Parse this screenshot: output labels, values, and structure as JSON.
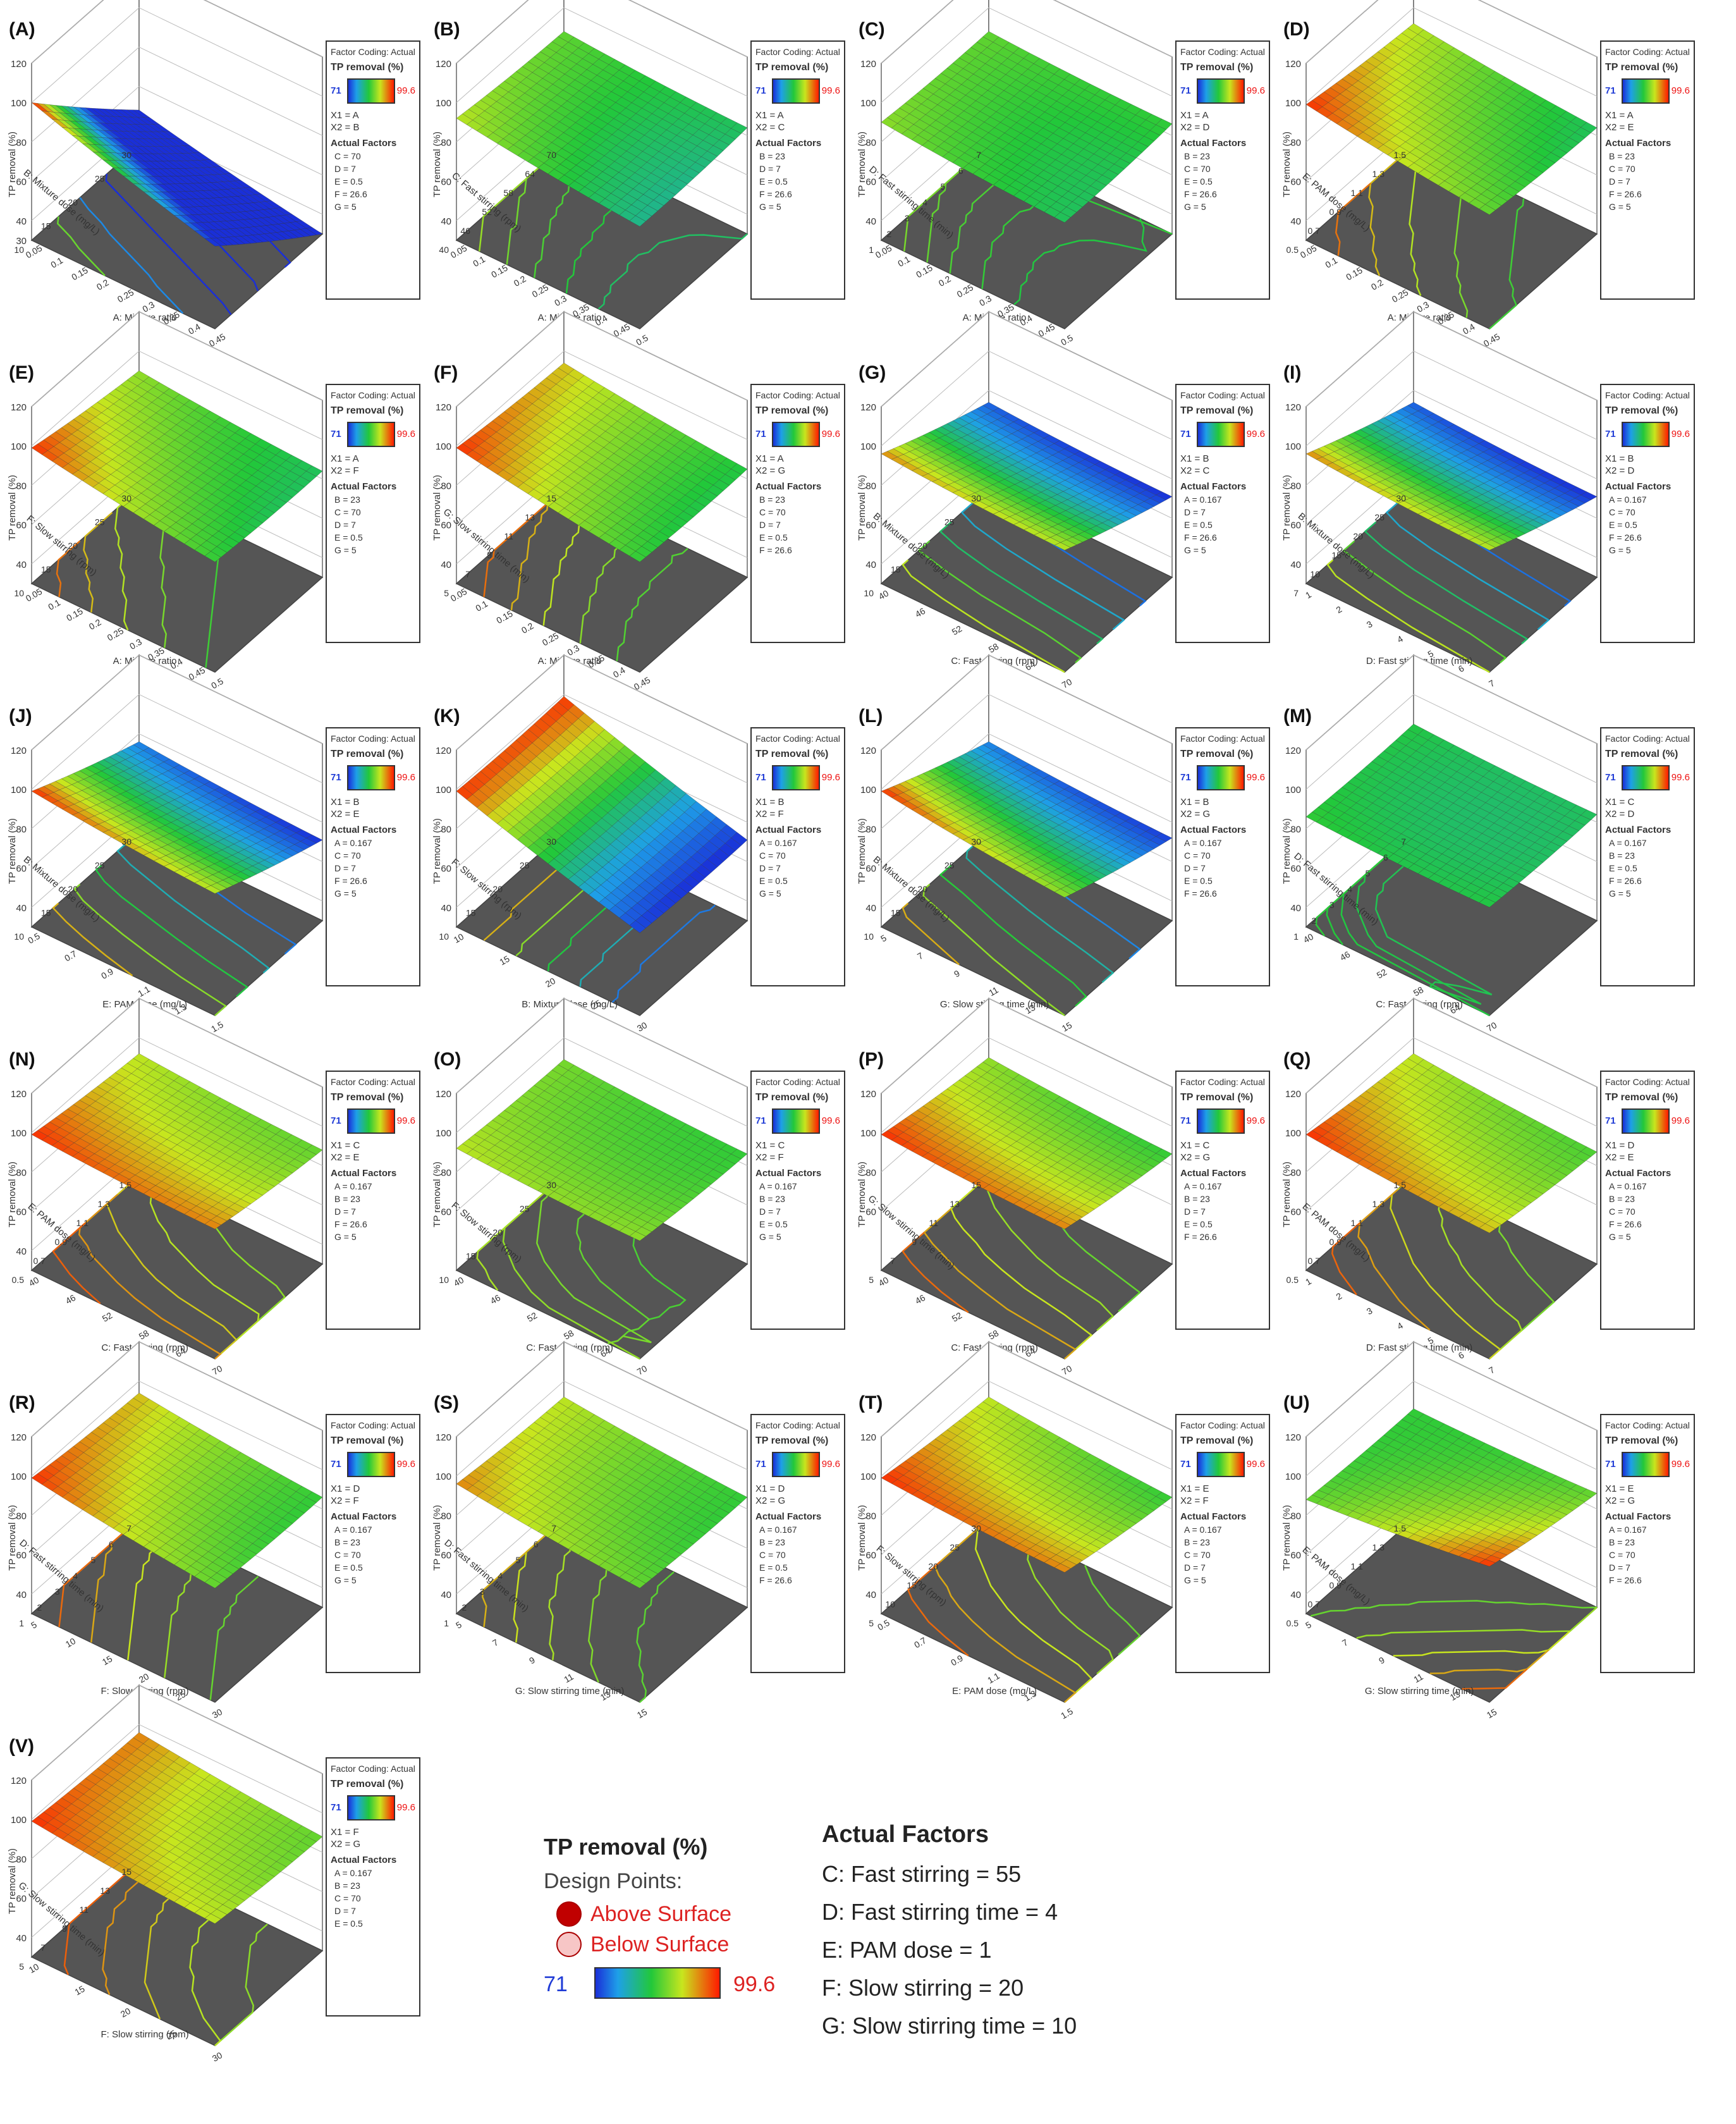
{
  "colorbar": {
    "min": "71",
    "max": "99.6",
    "colors": [
      "#1a2fd8",
      "#1ea0e8",
      "#22c83a",
      "#c8e61e",
      "#ff1a00"
    ]
  },
  "panel_legend": {
    "factor_coding": "Factor Coding: Actual",
    "response": "TP removal (%)",
    "actual_factors_title": "Actual Factors"
  },
  "chart_data": [
    {
      "type": "surface",
      "label": "(A)",
      "zlabel": "TP removal (%)",
      "zticks": [
        "30",
        "40",
        "60",
        "80",
        "100",
        "120"
      ],
      "xlabel": "A: Mixture ratio",
      "xticks": [
        "0.05",
        "0.1",
        "0.15",
        "0.2",
        "0.25",
        "0.3",
        "0.35",
        "0.4",
        "0.45"
      ],
      "ylabel": "B: Mixture dose (mg/L)",
      "yticks": [
        "10",
        "15",
        "20",
        "25",
        "30"
      ],
      "x1": "X1 = A",
      "x2": "X2 = B",
      "actual_factors": [
        "C = 70",
        "D = 7",
        "E = 0.5",
        "F = 26.6",
        "G = 5"
      ],
      "corners": [
        100,
        72,
        48,
        30
      ]
    },
    {
      "type": "surface",
      "label": "(B)",
      "zlabel": "TP removal (%)",
      "zticks": [
        "40",
        "60",
        "80",
        "100",
        "120"
      ],
      "xlabel": "A: Mixture ratio",
      "xticks": [
        "0.05",
        "0.1",
        "0.15",
        "0.2",
        "0.25",
        "0.3",
        "0.35",
        "0.4",
        "0.45",
        "0.5"
      ],
      "ylabel": "C: Fast stirring (rpm)",
      "yticks": [
        "40",
        "46",
        "52",
        "58",
        "64",
        "70"
      ],
      "x1": "X1 = A",
      "x2": "X2 = C",
      "actual_factors": [
        "B = 23",
        "D = 7",
        "E = 0.5",
        "F = 26.6",
        "G = 5"
      ],
      "corners": [
        92,
        82,
        88,
        84
      ]
    },
    {
      "type": "surface",
      "label": "(C)",
      "zlabel": "TP removal (%)",
      "zticks": [
        "40",
        "60",
        "80",
        "100",
        "120"
      ],
      "xlabel": "A: Mixture ratio",
      "xticks": [
        "0.05",
        "0.1",
        "0.15",
        "0.2",
        "0.25",
        "0.3",
        "0.35",
        "0.4",
        "0.45",
        "0.5"
      ],
      "ylabel": "D: Fast stirring time (min)",
      "yticks": [
        "1",
        "2",
        "3",
        "4",
        "5",
        "6",
        "7"
      ],
      "x1": "X1 = A",
      "x2": "X2 = D",
      "actual_factors": [
        "B = 23",
        "C = 70",
        "E = 0.5",
        "F = 26.6",
        "G = 5"
      ],
      "corners": [
        90,
        84,
        88,
        86
      ]
    },
    {
      "type": "surface",
      "label": "(D)",
      "zlabel": "TP removal (%)",
      "zticks": [
        "40",
        "60",
        "80",
        "100",
        "120"
      ],
      "xlabel": "A: Mixture ratio",
      "xticks": [
        "0.05",
        "0.1",
        "0.15",
        "0.2",
        "0.25",
        "0.3",
        "0.35",
        "0.4",
        "0.45"
      ],
      "ylabel": "E: PAM dose (mg/L)",
      "yticks": [
        "0.5",
        "0.7",
        "0.9",
        "1.1",
        "1.3",
        "1.5"
      ],
      "x1": "X1 = A",
      "x2": "X2 = E",
      "actual_factors": [
        "B = 23",
        "C = 70",
        "D = 7",
        "F = 26.6",
        "G = 5"
      ],
      "corners": [
        99,
        88,
        92,
        84
      ]
    },
    {
      "type": "surface",
      "label": "(E)",
      "zlabel": "TP removal (%)",
      "zticks": [
        "40",
        "60",
        "80",
        "100",
        "120"
      ],
      "xlabel": "A: Mixture ratio",
      "xticks": [
        "0.05",
        "0.1",
        "0.15",
        "0.2",
        "0.25",
        "0.3",
        "0.35",
        "0.4",
        "0.45",
        "0.5"
      ],
      "ylabel": "F: Slow stirring (rpm)",
      "yticks": [
        "10",
        "15",
        "20",
        "25",
        "30"
      ],
      "x1": "X1 = A",
      "x2": "X2 = F",
      "actual_factors": [
        "B = 23",
        "C = 70",
        "D = 7",
        "E = 0.5",
        "G = 5"
      ],
      "corners": [
        99,
        86,
        90,
        84
      ]
    },
    {
      "type": "surface",
      "label": "(F)",
      "zlabel": "TP removal (%)",
      "zticks": [
        "40",
        "60",
        "80",
        "100",
        "120"
      ],
      "xlabel": "A: Mixture ratio",
      "xticks": [
        "0.05",
        "0.1",
        "0.15",
        "0.2",
        "0.25",
        "0.3",
        "0.35",
        "0.4",
        "0.45"
      ],
      "ylabel": "G: Slow stirring time (min)",
      "yticks": [
        "5",
        "7",
        "9",
        "11",
        "13",
        "15"
      ],
      "x1": "X1 = A",
      "x2": "X2 = G",
      "actual_factors": [
        "B = 23",
        "C = 70",
        "D = 7",
        "E = 0.5",
        "F = 26.6"
      ],
      "corners": [
        99,
        86,
        94,
        85
      ]
    },
    {
      "type": "surface",
      "label": "(G)",
      "zlabel": "TP removal (%)",
      "zticks": [
        "40",
        "60",
        "80",
        "100",
        "120"
      ],
      "xlabel": "C: Fast stirring (rpm)",
      "xticks": [
        "40",
        "46",
        "52",
        "58",
        "64",
        "70"
      ],
      "ylabel": "B: Mixture dose (mg/L)",
      "yticks": [
        "10",
        "15",
        "20",
        "25",
        "30"
      ],
      "x1": "X1 = B",
      "x2": "X2 = C",
      "actual_factors": [
        "A = 0.167",
        "D = 7",
        "E = 0.5",
        "F = 26.6",
        "G = 5"
      ],
      "corners": [
        96,
        92,
        74,
        71
      ]
    },
    {
      "type": "surface",
      "label": "(I)",
      "zlabel": "TP removal (%)",
      "zticks": [
        "40",
        "60",
        "80",
        "100",
        "120"
      ],
      "xlabel": "D: Fast stirring time (min)",
      "xticks": [
        "1",
        "2",
        "3",
        "4",
        "5",
        "6",
        "7"
      ],
      "ylabel": "B: Mixture dose (mg/L)",
      "yticks": [
        "7",
        "10",
        "15",
        "20",
        "25",
        "30"
      ],
      "x1": "X1 = B",
      "x2": "X2 = D",
      "actual_factors": [
        "A = 0.167",
        "C = 70",
        "E = 0.5",
        "F = 26.6",
        "G = 5"
      ],
      "corners": [
        96,
        92,
        74,
        71
      ]
    },
    {
      "type": "surface",
      "label": "(J)",
      "zlabel": "TP removal (%)",
      "zticks": [
        "40",
        "60",
        "80",
        "100",
        "120"
      ],
      "xlabel": "E: PAM dose (mg/L)",
      "xticks": [
        "0.5",
        "0.7",
        "0.9",
        "1.1",
        "1.3",
        "1.5"
      ],
      "ylabel": "B: Mixture dose (mg/L)",
      "yticks": [
        "10",
        "15",
        "20",
        "25",
        "30"
      ],
      "x1": "X1 = B",
      "x2": "X2 = E",
      "actual_factors": [
        "A = 0.167",
        "C = 70",
        "D = 7",
        "F = 26.6",
        "G = 5"
      ],
      "corners": [
        99,
        92,
        76,
        71
      ]
    },
    {
      "type": "surface",
      "label": "(K)",
      "zlabel": "TP removal (%)",
      "zticks": [
        "40",
        "60",
        "80",
        "100",
        "120"
      ],
      "xlabel": "B: Mixture dose (mg/L)",
      "xticks": [
        "10",
        "15",
        "20",
        "25",
        "30"
      ],
      "ylabel": "F: Slow stirring (rpm)",
      "yticks": [
        "10",
        "15",
        "20",
        "25",
        "30"
      ],
      "x1": "X1 = B",
      "x2": "X2 = F",
      "actual_factors": [
        "A = 0.167",
        "C = 70",
        "D = 7",
        "E = 0.5",
        "G = 5"
      ],
      "corners": [
        99,
        72,
        99,
        71
      ]
    },
    {
      "type": "surface",
      "label": "(L)",
      "zlabel": "TP removal (%)",
      "zticks": [
        "40",
        "60",
        "80",
        "100",
        "120"
      ],
      "xlabel": "G: Slow stirring time (min)",
      "xticks": [
        "5",
        "7",
        "9",
        "11",
        "13",
        "15"
      ],
      "ylabel": "B: Mixture dose (mg/L)",
      "yticks": [
        "10",
        "15",
        "20",
        "25",
        "30"
      ],
      "x1": "X1 = B",
      "x2": "X2 = G",
      "actual_factors": [
        "A = 0.167",
        "C = 70",
        "D = 7",
        "E = 0.5",
        "F = 26.6"
      ],
      "corners": [
        99,
        90,
        76,
        72
      ]
    },
    {
      "type": "surface",
      "label": "(M)",
      "zlabel": "TP removal (%)",
      "zticks": [
        "40",
        "60",
        "80",
        "100",
        "120"
      ],
      "xlabel": "C: Fast stirring (rpm)",
      "xticks": [
        "40",
        "46",
        "52",
        "58",
        "64",
        "70"
      ],
      "ylabel": "D: Fast stirring time (min)",
      "yticks": [
        "1",
        "2",
        "3",
        "4",
        "5",
        "6",
        "7"
      ],
      "x1": "X1 = C",
      "x2": "X2 = D",
      "actual_factors": [
        "A = 0.167",
        "B = 23",
        "E = 0.5",
        "F = 26.6",
        "G = 5"
      ],
      "corners": [
        86,
        85,
        85,
        84
      ]
    },
    {
      "type": "surface",
      "label": "(N)",
      "zlabel": "TP removal (%)",
      "zticks": [
        "40",
        "60",
        "80",
        "100",
        "120"
      ],
      "xlabel": "C: Fast stirring (rpm)",
      "xticks": [
        "40",
        "46",
        "52",
        "58",
        "64",
        "70"
      ],
      "ylabel": "E: PAM dose (mg/L)",
      "yticks": [
        "0.5",
        "0.7",
        "0.9",
        "1.1",
        "1.3",
        "1.5"
      ],
      "x1": "X1 = C",
      "x2": "X2 = E",
      "actual_factors": [
        "A = 0.167",
        "B = 23",
        "D = 7",
        "F = 26.6",
        "G = 5"
      ],
      "corners": [
        99,
        96,
        92,
        88
      ]
    },
    {
      "type": "surface",
      "label": "(O)",
      "zlabel": "TP removal (%)",
      "zticks": [
        "60",
        "80",
        "100",
        "120"
      ],
      "xlabel": "C: Fast stirring (rpm)",
      "xticks": [
        "40",
        "46",
        "52",
        "58",
        "64",
        "70"
      ],
      "ylabel": "F: Slow stirring (rpm)",
      "yticks": [
        "10",
        "15",
        "20",
        "25",
        "30"
      ],
      "x1": "X1 = C",
      "x2": "X2 = F",
      "actual_factors": [
        "A = 0.167",
        "B = 23",
        "D = 7",
        "E = 0.5",
        "G = 5"
      ],
      "corners": [
        92,
        90,
        89,
        86
      ]
    },
    {
      "type": "surface",
      "label": "(P)",
      "zlabel": "TP removal (%)",
      "zticks": [
        "60",
        "80",
        "100",
        "120"
      ],
      "xlabel": "C: Fast stirring (rpm)",
      "xticks": [
        "40",
        "46",
        "52",
        "58",
        "64",
        "70"
      ],
      "ylabel": "G: Slow stirring time (min)",
      "yticks": [
        "5",
        "7",
        "9",
        "11",
        "13",
        "15"
      ],
      "x1": "X1 = C",
      "x2": "X2 = G",
      "actual_factors": [
        "A = 0.167",
        "B = 23",
        "D = 7",
        "E = 0.5",
        "F = 26.6"
      ],
      "corners": [
        99,
        96,
        90,
        86
      ]
    },
    {
      "type": "surface",
      "label": "(Q)",
      "zlabel": "TP removal (%)",
      "zticks": [
        "60",
        "80",
        "100",
        "120"
      ],
      "xlabel": "D: Fast stirring time (min)",
      "xticks": [
        "1",
        "2",
        "3",
        "4",
        "5",
        "6",
        "7"
      ],
      "ylabel": "E: PAM dose (mg/L)",
      "yticks": [
        "0.5",
        "0.7",
        "0.9",
        "1.1",
        "1.3",
        "1.5"
      ],
      "x1": "X1 = D",
      "x2": "X2 = E",
      "actual_factors": [
        "A = 0.167",
        "B = 23",
        "C = 70",
        "F = 26.6",
        "G = 5"
      ],
      "corners": [
        99,
        94,
        92,
        87
      ]
    },
    {
      "type": "surface",
      "label": "(R)",
      "zlabel": "TP removal (%)",
      "zticks": [
        "40",
        "60",
        "80",
        "100",
        "120"
      ],
      "xlabel": "F: Slow stirring (rpm)",
      "xticks": [
        "5",
        "10",
        "15",
        "20",
        "25",
        "30"
      ],
      "ylabel": "D: Fast stirring time (min)",
      "yticks": [
        "1",
        "2",
        "3",
        "4",
        "5",
        "6",
        "7"
      ],
      "x1": "X1 = D",
      "x2": "X2 = F",
      "actual_factors": [
        "A = 0.167",
        "B = 23",
        "C = 70",
        "E = 0.5",
        "G = 5"
      ],
      "corners": [
        99,
        88,
        94,
        86
      ]
    },
    {
      "type": "surface",
      "label": "(S)",
      "zlabel": "TP removal (%)",
      "zticks": [
        "40",
        "60",
        "80",
        "100",
        "120"
      ],
      "xlabel": "G: Slow stirring time (min)",
      "xticks": [
        "5",
        "7",
        "9",
        "11",
        "13",
        "15"
      ],
      "ylabel": "D: Fast stirring time (min)",
      "yticks": [
        "1",
        "2",
        "3",
        "4",
        "5",
        "6",
        "7"
      ],
      "x1": "X1 = D",
      "x2": "X2 = G",
      "actual_factors": [
        "A = 0.167",
        "B = 23",
        "C = 70",
        "E = 0.5",
        "F = 26.6"
      ],
      "corners": [
        96,
        88,
        92,
        86
      ]
    },
    {
      "type": "surface",
      "label": "(T)",
      "zlabel": "TP removal (%)",
      "zticks": [
        "40",
        "60",
        "80",
        "100",
        "120"
      ],
      "xlabel": "E: PAM dose (mg/L)",
      "xticks": [
        "0.5",
        "0.7",
        "0.9",
        "1.1",
        "1.3",
        "1.5"
      ],
      "ylabel": "F: Slow stirring (rpm)",
      "yticks": [
        "5",
        "10",
        "15",
        "20",
        "25",
        "30"
      ],
      "x1": "X1 = E",
      "x2": "X2 = F",
      "actual_factors": [
        "A = 0.167",
        "B = 23",
        "C = 70",
        "D = 7",
        "G = 5"
      ],
      "corners": [
        99,
        96,
        92,
        86
      ]
    },
    {
      "type": "surface",
      "label": "(U)",
      "zlabel": "TP removal (%)",
      "zticks": [
        "40",
        "60",
        "80",
        "100",
        "120"
      ],
      "xlabel": "G: Slow stirring time (min)",
      "xticks": [
        "5",
        "7",
        "9",
        "11",
        "13",
        "15"
      ],
      "ylabel": "E: PAM dose (mg/L)",
      "yticks": [
        "0.5",
        "0.7",
        "0.9",
        "1.1",
        "1.3",
        "1.5"
      ],
      "x1": "X1 = E",
      "x2": "X2 = G",
      "actual_factors": [
        "A = 0.167",
        "B = 23",
        "C = 70",
        "D = 7",
        "F = 26.6"
      ],
      "corners": [
        88,
        99,
        86,
        88
      ]
    },
    {
      "type": "surface",
      "label": "(V)",
      "zlabel": "TP removal (%)",
      "zticks": [
        "40",
        "60",
        "80",
        "100",
        "120"
      ],
      "xlabel": "F: Slow stirring (rpm)",
      "xticks": [
        "10",
        "15",
        "20",
        "25",
        "30"
      ],
      "ylabel": "G: Slow stirring time (min)",
      "yticks": [
        "5",
        "7",
        "9",
        "11",
        "13",
        "15"
      ],
      "x1": "X1 = F",
      "x2": "X2 = G",
      "actual_factors": [
        "A = 0.167",
        "B = 23",
        "C = 70",
        "D = 7",
        "E = 0.5"
      ],
      "corners": [
        99,
        92,
        96,
        88
      ]
    }
  ],
  "summary_legend": {
    "title": "TP removal (%)",
    "design_points": "Design Points:",
    "above": "Above Surface",
    "below": "Below Surface",
    "min": "71",
    "max": "99.6"
  },
  "actual_factors_box": {
    "title": "Actual Factors",
    "items": [
      "C: Fast stirring = 55",
      "D: Fast stirring time = 4",
      "E: PAM dose = 1",
      "F: Slow stirring = 20",
      "G: Slow stirring time = 10"
    ]
  }
}
